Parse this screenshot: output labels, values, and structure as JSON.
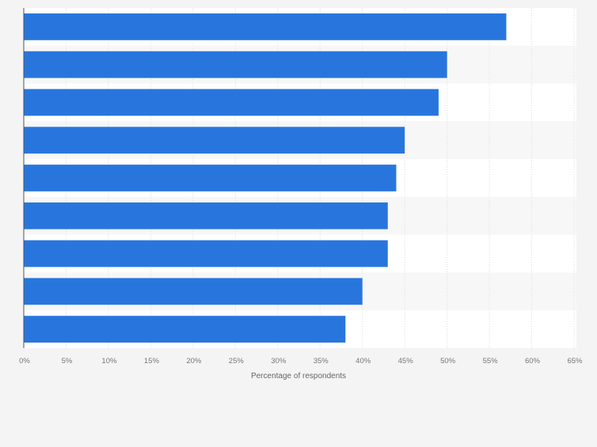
{
  "chart_data": {
    "type": "bar",
    "orientation": "horizontal",
    "categories": [
      "",
      "",
      "",
      "",
      "",
      "",
      "",
      "",
      ""
    ],
    "values": [
      57,
      50,
      49,
      45,
      44,
      43,
      43,
      40,
      38
    ],
    "title": "",
    "xlabel": "Percentage of respondents",
    "ylabel": "",
    "xlim": [
      0,
      65
    ],
    "ticks": [
      "0%",
      "5%",
      "10%",
      "15%",
      "20%",
      "25%",
      "30%",
      "35%",
      "40%",
      "45%",
      "50%",
      "55%",
      "60%",
      "65%"
    ],
    "grid": true,
    "bar_color": "#2876dd"
  }
}
